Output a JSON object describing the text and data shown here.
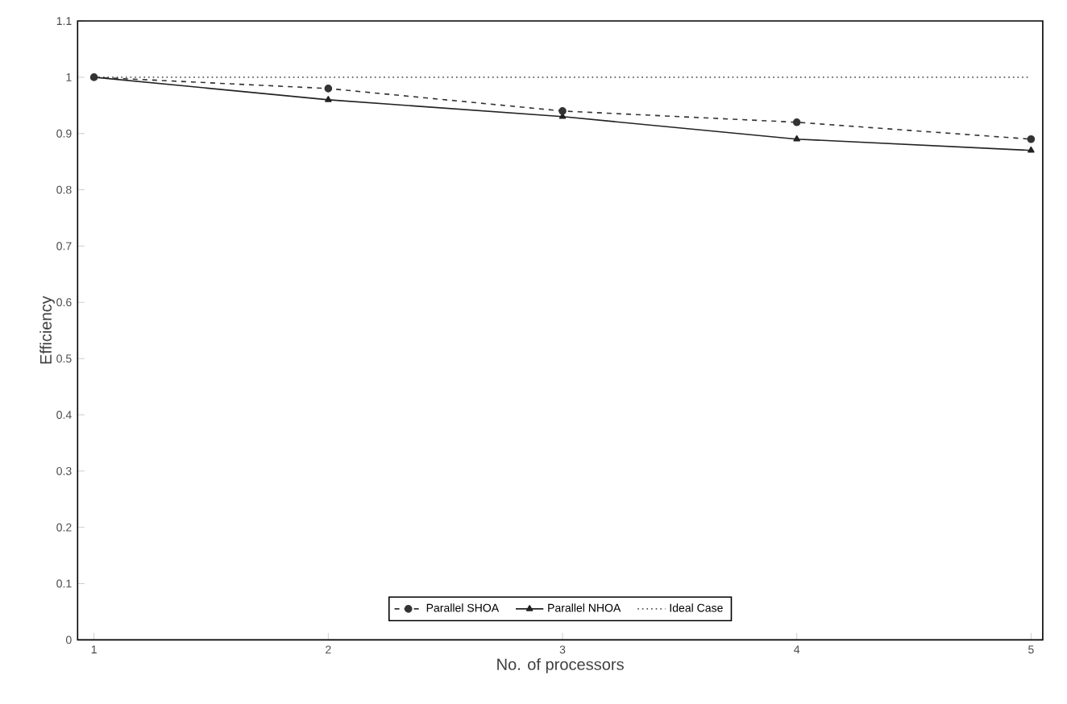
{
  "chart_data": {
    "type": "line",
    "xlabel": "No. of processors",
    "ylabel": "Efficiency",
    "x": [
      1,
      2,
      3,
      4,
      5
    ],
    "series": [
      {
        "name": "Parallel SHOA",
        "color": "#333333",
        "values": [
          1.0,
          0.98,
          0.94,
          0.92,
          0.89
        ],
        "line_style": "dashed",
        "marker": "circle"
      },
      {
        "name": "Parallel NHOA",
        "color": "#222222",
        "values": [
          1.0,
          0.96,
          0.93,
          0.89,
          0.87
        ],
        "line_style": "solid",
        "marker": "triangle"
      },
      {
        "name": "Ideal Case",
        "color": "#555555",
        "values": [
          1.0,
          1.0,
          1.0,
          1.0,
          1.0
        ],
        "line_style": "dotted",
        "marker": "none"
      }
    ],
    "xlim": [
      0.93,
      5.05
    ],
    "xticks": [
      1,
      2,
      3,
      4,
      5
    ],
    "ylim": [
      0,
      1.1
    ],
    "yticks": [
      0,
      0.1,
      0.2,
      0.3,
      0.4,
      0.5,
      0.6,
      0.7,
      0.8,
      0.9,
      1,
      1.1
    ],
    "grid": false,
    "legend": "bottom"
  }
}
